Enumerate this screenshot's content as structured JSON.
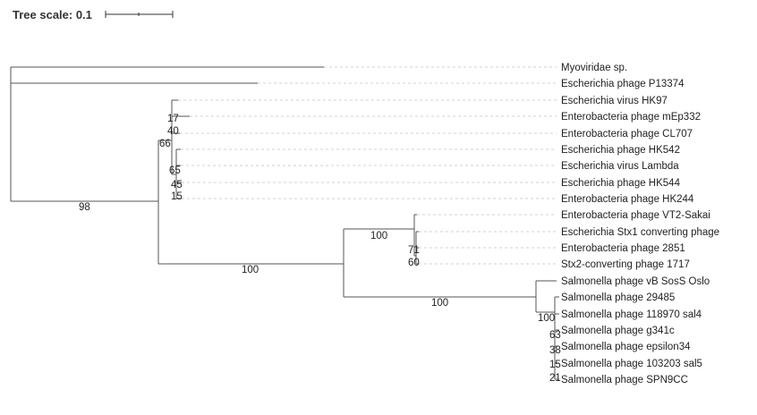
{
  "scale": {
    "label": "Tree scale: 0.1"
  },
  "leaves": [
    "Myoviridae sp.",
    "Escherichia phage P13374",
    "Escherichia virus HK97",
    "Enterobacteria phage mEp332",
    "Enterobacteria phage CL707",
    "Escherichia phage HK542",
    "Escherichia virus Lambda",
    "Escherichia phage HK544",
    "Enterobacteria phage HK244",
    "Enterobacteria phage VT2-Sakai",
    "Escherichia Stx1 converting phage",
    "Enterobacteria phage 2851",
    "Stx2-converting phage 1717",
    "Salmonella phage vB SosS Oslo",
    "Salmonella phage 29485",
    "Salmonella phage 118970 sal4",
    "Salmonella phage g341c",
    "Salmonella phage epsilon34",
    "Salmonella phage 103203 sal5",
    "Salmonella phage SPN9CC"
  ],
  "support_values": [
    "98",
    "100",
    "100",
    "100",
    "100",
    "66",
    "17",
    "40",
    "65",
    "45",
    "15",
    "71",
    "60",
    "63",
    "38",
    "15",
    "21"
  ]
}
